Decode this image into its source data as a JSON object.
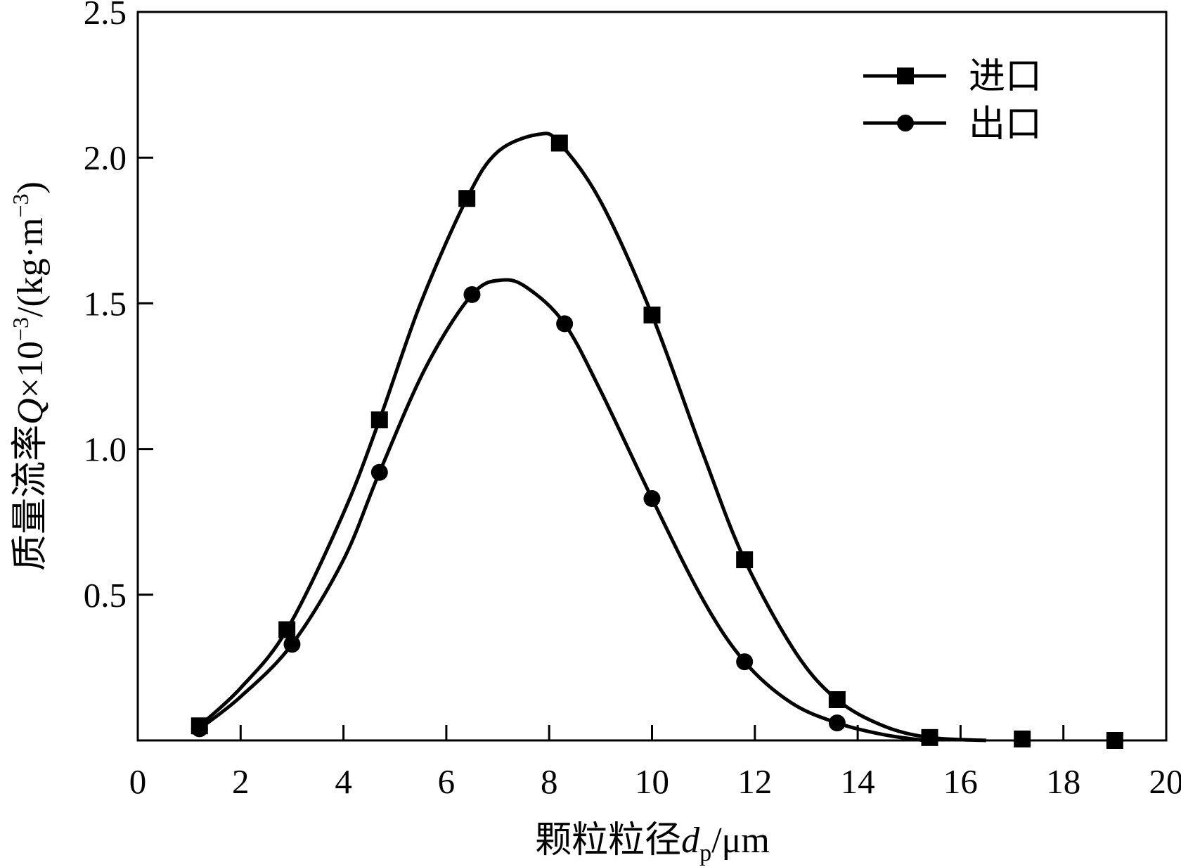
{
  "chart_data": {
    "type": "line",
    "xlabel": {
      "main": "颗粒粒径",
      "var": "d",
      "sub": "p",
      "unit": "/μm"
    },
    "ylabel": {
      "main": "质量流率",
      "var": "Q",
      "mult": "×10",
      "exp1": "−3",
      "mid": "/(kg·m",
      "exp2": "−3",
      "close": ")"
    },
    "xlim": [
      0,
      20
    ],
    "ylim": [
      0,
      2.5
    ],
    "xticks": [
      0,
      2,
      4,
      6,
      8,
      10,
      12,
      14,
      16,
      18,
      20
    ],
    "yticks": [
      0.5,
      1.0,
      1.5,
      2.0,
      2.5
    ],
    "ytick_labels": [
      "0.5",
      "1.0",
      "1.5",
      "2.0",
      "2.5"
    ],
    "grid": false,
    "legend_position": "top-right",
    "line_color": "#000000",
    "series": [
      {
        "name": "进口",
        "marker": "square",
        "x": [
          1.2,
          2.9,
          4.7,
          6.4,
          8.2,
          10.0,
          11.8,
          13.6,
          15.4,
          17.2,
          19.0
        ],
        "y": [
          0.05,
          0.38,
          1.1,
          1.86,
          2.05,
          1.46,
          0.62,
          0.14,
          0.01,
          0.005,
          0.0
        ],
        "curve": [
          [
            1.2,
            0.05
          ],
          [
            2.0,
            0.18
          ],
          [
            2.9,
            0.38
          ],
          [
            4.0,
            0.78
          ],
          [
            4.7,
            1.1
          ],
          [
            5.5,
            1.5
          ],
          [
            6.4,
            1.86
          ],
          [
            7.0,
            2.02
          ],
          [
            7.8,
            2.08
          ],
          [
            8.2,
            2.05
          ],
          [
            9.0,
            1.85
          ],
          [
            10.0,
            1.46
          ],
          [
            11.0,
            0.98
          ],
          [
            11.8,
            0.62
          ],
          [
            12.8,
            0.3
          ],
          [
            13.6,
            0.14
          ],
          [
            14.5,
            0.05
          ],
          [
            15.4,
            0.01
          ],
          [
            16.5,
            0.0
          ]
        ]
      },
      {
        "name": "出口",
        "marker": "circle",
        "x": [
          1.2,
          3.0,
          4.7,
          6.5,
          8.3,
          10.0,
          11.8,
          13.6
        ],
        "y": [
          0.04,
          0.33,
          0.92,
          1.53,
          1.43,
          0.83,
          0.27,
          0.06
        ],
        "curve": [
          [
            1.2,
            0.04
          ],
          [
            2.0,
            0.15
          ],
          [
            3.0,
            0.33
          ],
          [
            4.0,
            0.62
          ],
          [
            4.7,
            0.92
          ],
          [
            5.6,
            1.28
          ],
          [
            6.5,
            1.53
          ],
          [
            7.1,
            1.58
          ],
          [
            7.6,
            1.55
          ],
          [
            8.3,
            1.43
          ],
          [
            9.0,
            1.2
          ],
          [
            10.0,
            0.83
          ],
          [
            11.0,
            0.48
          ],
          [
            11.8,
            0.27
          ],
          [
            12.7,
            0.13
          ],
          [
            13.6,
            0.06
          ],
          [
            14.5,
            0.02
          ],
          [
            15.3,
            0.0
          ]
        ]
      }
    ]
  }
}
